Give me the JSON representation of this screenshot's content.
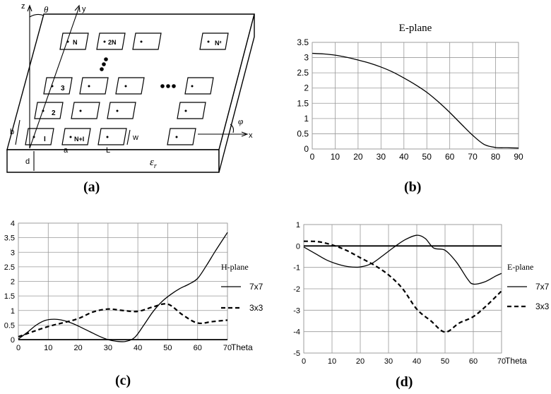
{
  "figure": {
    "panel_a": {
      "label": "(a)",
      "axes": {
        "z": "z",
        "y": "y",
        "x": "x",
        "theta": "θ",
        "phi": "φ"
      },
      "patch_labels": [
        "N",
        "2N",
        "N²",
        "3",
        "2",
        "I",
        "N+I"
      ],
      "dimension_labels": {
        "b": "b",
        "a": "a",
        "L": "L",
        "w": "w",
        "d": "d",
        "epsilon": "ε",
        "epsilon_sub": "r"
      }
    },
    "panel_b": {
      "label": "(b)"
    },
    "panel_c": {
      "label": "(c)"
    },
    "panel_d": {
      "label": "(d)"
    }
  },
  "chart_data": [
    {
      "id": "b",
      "type": "line",
      "title": "E-plane",
      "xlim": [
        0,
        90
      ],
      "ylim": [
        0,
        3.5
      ],
      "xticks": [
        "0",
        "10",
        "20",
        "30",
        "40",
        "50",
        "60",
        "70",
        "80",
        "90"
      ],
      "yticks": [
        "0",
        "0.5",
        "1",
        "1.5",
        "2",
        "2.5",
        "3",
        "3.5"
      ],
      "grid": true,
      "series": [
        {
          "x": [
            0,
            5,
            10,
            15,
            20,
            25,
            30,
            35,
            40,
            45,
            50,
            55,
            60,
            65,
            70,
            75,
            80,
            85,
            90
          ],
          "y": [
            3.14,
            3.12,
            3.08,
            3.01,
            2.92,
            2.82,
            2.69,
            2.53,
            2.33,
            2.11,
            1.86,
            1.55,
            1.2,
            0.82,
            0.45,
            0.15,
            0.05,
            0.04,
            0.03
          ],
          "style": "solid"
        }
      ]
    },
    {
      "id": "c",
      "type": "line",
      "xlim": [
        0,
        70
      ],
      "ylim": [
        0,
        4
      ],
      "xticks": [
        "0",
        "10",
        "20",
        "30",
        "40",
        "50",
        "60",
        "70"
      ],
      "yticks": [
        "0",
        "0.5",
        "1",
        "1.5",
        "2",
        "2.5",
        "3",
        "3.5",
        "4"
      ],
      "x_axis_suffix": "Theta",
      "grid": true,
      "legend_title": "H-plane",
      "series": [
        {
          "name": "7x7",
          "style": "solid",
          "x": [
            0,
            3,
            6,
            9,
            12,
            15,
            18,
            21,
            24,
            27,
            30,
            33,
            36,
            39,
            42,
            45,
            48,
            51,
            54,
            57,
            60,
            63,
            66,
            70
          ],
          "y": [
            0.02,
            0.25,
            0.5,
            0.66,
            0.7,
            0.66,
            0.56,
            0.42,
            0.27,
            0.12,
            0.0,
            -0.06,
            -0.06,
            0.08,
            0.5,
            0.95,
            1.3,
            1.55,
            1.75,
            1.9,
            2.1,
            2.55,
            3.05,
            3.68
          ]
        },
        {
          "name": "3x3",
          "style": "dashed",
          "x": [
            0,
            5,
            10,
            15,
            20,
            25,
            30,
            35,
            40,
            45,
            50,
            55,
            60,
            65,
            70
          ],
          "y": [
            0.1,
            0.28,
            0.45,
            0.58,
            0.72,
            0.95,
            1.05,
            1.0,
            0.97,
            1.12,
            1.22,
            0.85,
            0.57,
            0.62,
            0.67
          ]
        }
      ]
    },
    {
      "id": "d",
      "type": "line",
      "xlim": [
        0,
        70
      ],
      "ylim": [
        -5,
        1
      ],
      "xticks": [
        "0",
        "10",
        "20",
        "30",
        "40",
        "50",
        "60",
        "70"
      ],
      "yticks": [
        "-5",
        "-4",
        "-3",
        "-2",
        "-1",
        "0",
        "1"
      ],
      "x_axis_suffix": "Theta",
      "grid": true,
      "legend_title": "E-plane",
      "series": [
        {
          "name": "7x7",
          "style": "solid",
          "x": [
            0,
            4,
            8,
            12,
            16,
            20,
            24,
            28,
            32,
            36,
            40,
            43,
            46,
            50,
            54,
            58,
            60,
            64,
            68,
            70
          ],
          "y": [
            -0.05,
            -0.35,
            -0.65,
            -0.85,
            -0.97,
            -0.98,
            -0.82,
            -0.45,
            -0.05,
            0.3,
            0.5,
            0.35,
            -0.1,
            -0.2,
            -0.75,
            -1.55,
            -1.78,
            -1.68,
            -1.4,
            -1.28
          ]
        },
        {
          "name": "3x3",
          "style": "dashed",
          "x": [
            0,
            5,
            10,
            15,
            20,
            25,
            30,
            35,
            40,
            45,
            50,
            55,
            60,
            65,
            70
          ],
          "y": [
            0.22,
            0.2,
            0.05,
            -0.2,
            -0.55,
            -0.9,
            -1.35,
            -2.0,
            -2.95,
            -3.5,
            -4.02,
            -3.6,
            -3.3,
            -2.75,
            -2.1
          ]
        }
      ]
    }
  ]
}
